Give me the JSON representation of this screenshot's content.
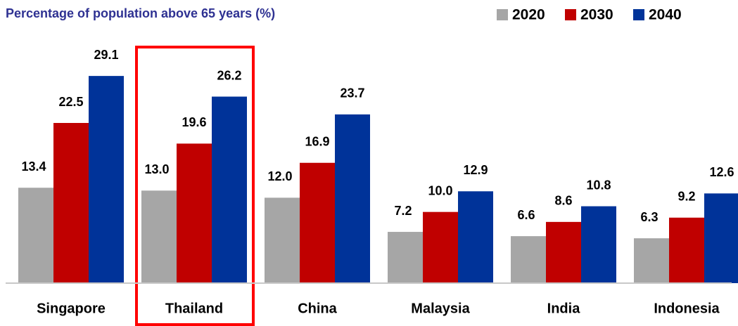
{
  "chart_data": {
    "type": "bar",
    "title": "Percentage of population above 65 years (%)",
    "categories": [
      "Singapore",
      "Thailand",
      "China",
      "Malaysia",
      "India",
      "Indonesia"
    ],
    "series": [
      {
        "name": "2020",
        "color": "#a6a6a6",
        "values": [
          13.4,
          13.0,
          12.0,
          7.2,
          6.6,
          6.3
        ],
        "value_labels": [
          "13.4",
          "13.0",
          "12.0",
          "7.2",
          "6.6",
          "6.3"
        ]
      },
      {
        "name": "2030",
        "color": "#c00000",
        "values": [
          22.5,
          19.6,
          16.9,
          10.0,
          8.6,
          9.2
        ],
        "value_labels": [
          "22.5",
          "19.6",
          "16.9",
          "10.0",
          "8.6",
          "9.2"
        ]
      },
      {
        "name": "2040",
        "color": "#003399",
        "values": [
          29.1,
          26.2,
          23.7,
          12.9,
          10.8,
          12.6
        ],
        "value_labels": [
          "29.1",
          "26.2",
          "23.7",
          "12.9",
          "10.8",
          "12.6"
        ]
      }
    ],
    "ylim": [
      0,
      30
    ],
    "legend": "top-right"
  }
}
